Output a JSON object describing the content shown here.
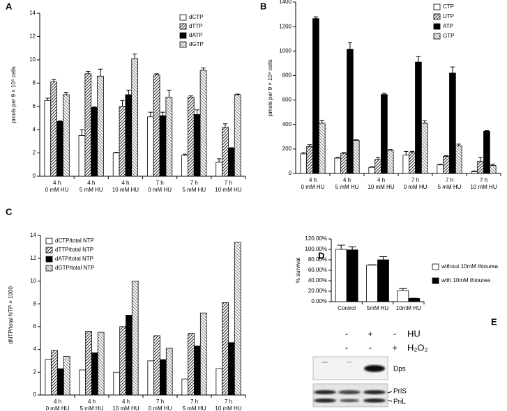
{
  "chart_data": [
    {
      "type": "bar",
      "label": "A",
      "ylabel": "pmols per 9 × 10⁹ cells",
      "categories": [
        [
          "4 h",
          "0 mM HU"
        ],
        [
          "4 h",
          "5 mM HU"
        ],
        [
          "4 h",
          "10 mM HU"
        ],
        [
          "7 h",
          "0 mM HU"
        ],
        [
          "7 h",
          "5 mM HU"
        ],
        [
          "7 h",
          "10 mM HU"
        ]
      ],
      "series": [
        {
          "name": "dCTP",
          "color": "#ffffff",
          "values": [
            6.5,
            3.5,
            2.0,
            5.1,
            1.8,
            1.2
          ],
          "errors": [
            0.2,
            0.5,
            0.05,
            0.4,
            0.1,
            0.3
          ]
        },
        {
          "name": "dTTP",
          "color": "#444444",
          "pattern": "hatch-dense",
          "values": [
            8.1,
            8.8,
            6.0,
            8.7,
            6.8,
            4.2
          ],
          "errors": [
            0.2,
            0.2,
            0.5,
            0.1,
            0.1,
            0.3
          ]
        },
        {
          "name": "dATP",
          "color": "#000000",
          "values": [
            4.7,
            5.9,
            7.0,
            5.2,
            5.3,
            2.4
          ],
          "errors": [
            0.05,
            0.05,
            0.4,
            0.3,
            0.4,
            0.05
          ]
        },
        {
          "name": "dGTP",
          "color": "#888888",
          "pattern": "hatch-light",
          "values": [
            7.0,
            8.6,
            10.1,
            6.8,
            9.1,
            7.0
          ],
          "errors": [
            0.2,
            0.6,
            0.4,
            0.6,
            0.2,
            0.05
          ]
        }
      ],
      "ylim": [
        0,
        14
      ],
      "yticks": [
        0,
        2,
        4,
        6,
        8,
        10,
        12,
        14
      ],
      "legend": "upper right"
    },
    {
      "type": "bar",
      "label": "B",
      "ylabel": "pmols per 9 × 10⁹ cells",
      "categories": [
        [
          "4 h",
          "0 mM HU"
        ],
        [
          "4 h",
          "5 mM HU"
        ],
        [
          "4 h",
          "10 mM HU"
        ],
        [
          "7 h",
          "0 mM HU"
        ],
        [
          "7 h",
          "5 mM HU"
        ],
        [
          "7 h",
          "10 mM HU"
        ]
      ],
      "series": [
        {
          "name": "CTP",
          "color": "#ffffff",
          "values": [
            160,
            125,
            50,
            150,
            70,
            15
          ],
          "errors": [
            10,
            5,
            5,
            30,
            5,
            5
          ]
        },
        {
          "name": "UTP",
          "color": "#444444",
          "pattern": "hatch-dense",
          "values": [
            220,
            165,
            115,
            170,
            140,
            100
          ],
          "errors": [
            15,
            5,
            15,
            10,
            5,
            30
          ]
        },
        {
          "name": "ATP",
          "color": "#000000",
          "values": [
            1265,
            1015,
            645,
            910,
            820,
            345
          ],
          "errors": [
            15,
            55,
            10,
            45,
            50,
            5
          ]
        },
        {
          "name": "GTP",
          "color": "#888888",
          "pattern": "hatch-light",
          "values": [
            410,
            270,
            190,
            410,
            225,
            65
          ],
          "errors": [
            25,
            5,
            5,
            20,
            15,
            10
          ]
        }
      ],
      "ylim": [
        0,
        1400
      ],
      "yticks": [
        0,
        200,
        400,
        600,
        800,
        1000,
        1200,
        1400
      ],
      "legend": "upper right"
    },
    {
      "type": "bar",
      "label": "C",
      "ylabel": "dNTP/total NTP × 1000",
      "categories": [
        [
          "4 h",
          "0 mM HU"
        ],
        [
          "4 h",
          "5 mM HU"
        ],
        [
          "4 h",
          "10 mM HU"
        ],
        [
          "7 h",
          "0 mM HU"
        ],
        [
          "7 h",
          "5 mM HU"
        ],
        [
          "7 h",
          "10 mM HU"
        ]
      ],
      "series": [
        {
          "name": "dCTP/total NTP",
          "color": "#ffffff",
          "values": [
            3.1,
            2.2,
            2.0,
            3.0,
            1.4,
            2.3
          ]
        },
        {
          "name": "dTTP/total NTP",
          "color": "#444444",
          "pattern": "hatch-dense",
          "values": [
            3.9,
            5.6,
            6.0,
            5.2,
            5.4,
            8.1
          ]
        },
        {
          "name": "dATP/total NTP",
          "color": "#000000",
          "values": [
            2.3,
            3.7,
            7.0,
            3.1,
            4.3,
            4.6
          ]
        },
        {
          "name": "dGTP/total NTP",
          "color": "#888888",
          "pattern": "hatch-light",
          "values": [
            3.4,
            5.5,
            10.0,
            4.1,
            7.2,
            13.4
          ]
        }
      ],
      "ylim": [
        0,
        14
      ],
      "yticks": [
        0,
        2,
        4,
        6,
        8,
        10,
        12,
        14
      ],
      "legend": "upper left"
    },
    {
      "type": "bar",
      "label": "D",
      "ylabel": "% survival",
      "categories": [
        "Control",
        "5mM HU",
        "10mM HU"
      ],
      "series": [
        {
          "name": "without 10mM thiourea",
          "color": "#ffffff",
          "values": [
            100,
            70,
            21
          ],
          "errors": [
            8,
            0.5,
            4
          ]
        },
        {
          "name": "with 10mM thiourea",
          "color": "#000000",
          "values": [
            99,
            80,
            6
          ],
          "errors": [
            6,
            6,
            0.5
          ]
        }
      ],
      "ylim": [
        0,
        120
      ],
      "yticks": [
        {
          "value": 0,
          "label": "0.00%"
        },
        {
          "value": 20,
          "label": "20.00%"
        },
        {
          "value": 40,
          "label": "40.00%"
        },
        {
          "value": 60,
          "label": "60.00%"
        },
        {
          "value": 80,
          "label": "80.00%"
        },
        {
          "value": 100,
          "label": "100.00%"
        },
        {
          "value": 120,
          "label": "120.00%"
        }
      ],
      "legend": "right"
    }
  ],
  "blot": {
    "label": "E",
    "rows": [
      {
        "name": "HU",
        "signs": [
          "-",
          "+",
          "-"
        ]
      },
      {
        "name": "H₂O₂",
        "signs": [
          "-",
          "-",
          "+"
        ]
      }
    ],
    "bands": [
      "Dps",
      "PriS",
      "PriL"
    ]
  }
}
